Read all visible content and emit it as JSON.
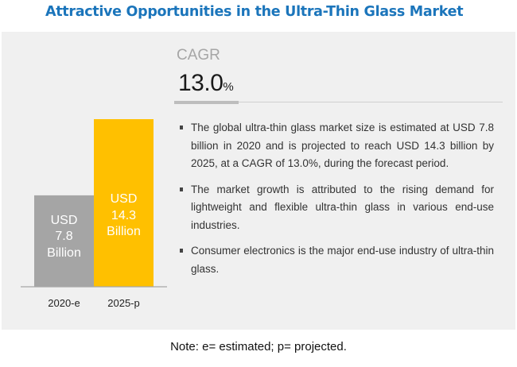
{
  "title": "Attractive Opportunities in the Ultra-Thin Glass Market",
  "cagr": {
    "label": "CAGR",
    "value": "13.0",
    "unit": "%"
  },
  "bullets": [
    "The global ultra-thin glass market size is estimated at USD 7.8 billion in 2020 and is projected to reach USD 14.3 billion by 2025, at a CAGR of 13.0%, during the forecast period.",
    "The market growth is attributed to the rising demand for lightweight and flexible ultra-thin glass in various end-use industries.",
    "Consumer electronics is the major end-use industry of ultra-thin glass."
  ],
  "note": "Note: e= estimated; p= projected.",
  "colors": {
    "title": "#1b75bb",
    "bar_2020": "#a5a5a5",
    "bar_2025": "#ffc000",
    "panel": "#f0f0f0"
  },
  "chart_data": {
    "type": "bar",
    "title": "",
    "xlabel": "",
    "ylabel": "",
    "categories": [
      "2020-e",
      "2025-p"
    ],
    "values": [
      7.8,
      14.3
    ],
    "unit": "USD Billion",
    "data_labels": [
      [
        "USD",
        "7.8",
        "Billion"
      ],
      [
        "USD",
        "14.3",
        "Billion"
      ]
    ],
    "bar_colors": [
      "#a5a5a5",
      "#ffc000"
    ],
    "ylim": [
      0,
      14.3
    ],
    "grid": false,
    "legend": "none"
  }
}
